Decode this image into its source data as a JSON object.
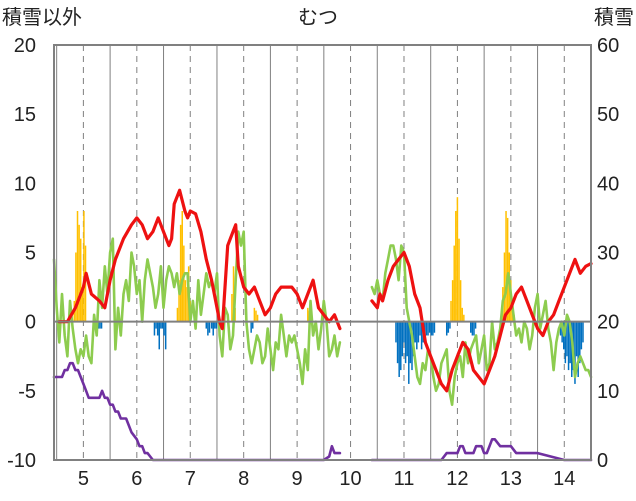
{
  "header": {
    "left_label": "積雪以外",
    "title": "むつ",
    "right_label": "積雪"
  },
  "chart_data": {
    "type": "line",
    "title": "むつ",
    "ylabel_left": "積雪以外",
    "ylabel_right": "積雪",
    "ylim_left": [
      -10,
      20
    ],
    "ylim_right": [
      0,
      60
    ],
    "yticks_left": [
      -10,
      -5,
      0,
      5,
      10,
      15,
      20
    ],
    "yticks_right": [
      0,
      10,
      20,
      30,
      40,
      50,
      60
    ],
    "xlim": [
      4.45,
      14.5
    ],
    "xticks": [
      "5",
      "6",
      "7",
      "8",
      "9",
      "10",
      "11",
      "12",
      "13",
      "14"
    ],
    "grid": {
      "solid_vertical_at": [
        4.5,
        5.5,
        6.5,
        7.5,
        8.5,
        9.5,
        10.5,
        11.5,
        12.5,
        13.5
      ],
      "dashed_vertical_at": [
        5,
        6,
        7,
        8,
        9,
        10,
        11,
        12,
        13,
        14
      ]
    },
    "colors": {
      "red": "#ee1111",
      "green": "#8dcc4f",
      "orange": "#ffc000",
      "blue": "#0070c0",
      "purple": "#7030a0",
      "axis": "#808080"
    },
    "series": [
      {
        "color": "#ee1111",
        "axis": "left",
        "segments": [
          {
            "x": [
              4.55,
              4.7,
              4.85,
              5.0,
              5.05,
              5.15,
              5.3,
              5.4,
              5.5,
              5.6,
              5.75,
              5.9,
              6.0,
              6.1,
              6.2,
              6.3,
              6.4,
              6.5,
              6.6,
              6.65,
              6.7,
              6.8,
              6.9,
              6.95,
              7.0,
              7.1,
              7.2,
              7.3,
              7.4,
              7.5,
              7.55,
              7.6,
              7.7,
              7.8,
              7.85,
              7.9,
              8.0,
              8.1,
              8.2,
              8.3,
              8.4,
              8.5,
              8.6,
              8.7,
              8.8,
              8.9,
              9.0,
              9.1,
              9.2,
              9.3,
              9.4,
              9.5,
              9.6,
              9.7,
              9.8
            ],
            "y": [
              0.0,
              0.0,
              1.0,
              2.5,
              3.5,
              2.0,
              1.5,
              1.0,
              3.0,
              4.5,
              6.0,
              7.0,
              7.5,
              7.0,
              6.0,
              6.5,
              7.5,
              6.5,
              5.5,
              6.0,
              8.5,
              9.5,
              8.0,
              7.5,
              8.0,
              7.8,
              6.5,
              4.5,
              3.0,
              1.0,
              0.0,
              -0.5,
              5.5,
              6.5,
              7.0,
              4.0,
              2.5,
              2.0,
              2.5,
              1.5,
              0.5,
              1.0,
              2.0,
              2.5,
              2.5,
              2.5,
              2.0,
              1.0,
              2.0,
              3.0,
              1.0,
              0.5,
              0.0,
              0.5,
              -0.5
            ]
          },
          {
            "x": [
              10.4,
              10.5,
              10.55,
              10.6,
              10.7,
              10.8,
              10.9,
              11.0,
              11.1,
              11.2,
              11.3,
              11.4,
              11.5,
              11.6,
              11.7,
              11.8,
              11.9,
              12.0,
              12.1,
              12.2,
              12.3,
              12.4,
              12.5,
              12.6,
              12.7,
              12.8,
              12.9,
              13.0,
              13.1,
              13.2,
              13.3,
              13.4,
              13.5,
              13.6,
              13.7,
              13.8,
              13.9,
              14.0,
              14.1,
              14.2,
              14.3,
              14.4,
              14.5
            ],
            "y": [
              1.5,
              1.0,
              2.0,
              1.5,
              3.0,
              4.0,
              4.5,
              5.0,
              4.0,
              2.0,
              1.0,
              -1.5,
              -2.5,
              -3.5,
              -4.5,
              -5.0,
              -3.5,
              -2.5,
              -1.5,
              -2.0,
              -3.5,
              -4.0,
              -4.5,
              -3.5,
              -2.5,
              -1.0,
              0.5,
              1.0,
              2.0,
              2.5,
              1.5,
              0.5,
              -0.5,
              -1.0,
              0.0,
              0.5,
              1.5,
              2.5,
              3.5,
              4.5,
              3.5,
              4.0,
              4.2
            ]
          }
        ]
      },
      {
        "color": "#8dcc4f",
        "axis": "left",
        "segments": [
          {
            "x": [
              4.45,
              4.5,
              4.55,
              4.6,
              4.65,
              4.7,
              4.75,
              4.8,
              4.85,
              4.9,
              4.95,
              5.0,
              5.05,
              5.1,
              5.15,
              5.2,
              5.25,
              5.3,
              5.35,
              5.4,
              5.45,
              5.5,
              5.55,
              5.6,
              5.65,
              5.7,
              5.75,
              5.8,
              5.85,
              5.9,
              5.95,
              6.0,
              6.05,
              6.1,
              6.15,
              6.2,
              6.25,
              6.3,
              6.35,
              6.4,
              6.45,
              6.5,
              6.55,
              6.6,
              6.65,
              6.7,
              6.75,
              6.8,
              6.85,
              6.9,
              6.95,
              7.0,
              7.05,
              7.1,
              7.15,
              7.2,
              7.25,
              7.3,
              7.35,
              7.4,
              7.45,
              7.5,
              7.55,
              7.6,
              7.65,
              7.7,
              7.75,
              7.8,
              7.85,
              7.9,
              7.95,
              8.0,
              8.05,
              8.1,
              8.15,
              8.2,
              8.25,
              8.3,
              8.35,
              8.4,
              8.45,
              8.5,
              8.55,
              8.6,
              8.65,
              8.7,
              8.75,
              8.8,
              8.85,
              8.9,
              8.95,
              9.0,
              9.05,
              9.1,
              9.15,
              9.2,
              9.25,
              9.3,
              9.35,
              9.4,
              9.45,
              9.5,
              9.55,
              9.6,
              9.65,
              9.7,
              9.75,
              9.8
            ],
            "y": [
              4.5,
              1.0,
              -1.5,
              2.0,
              -1.0,
              -2.5,
              1.5,
              -0.5,
              -2.0,
              -3.0,
              -2.0,
              -2.5,
              -1.0,
              -2.5,
              -3.0,
              0.5,
              -1.0,
              3.0,
              1.0,
              4.0,
              2.0,
              5.0,
              6.0,
              -2.0,
              1.0,
              -1.0,
              2.0,
              3.0,
              1.5,
              5.0,
              4.0,
              2.0,
              3.0,
              0.0,
              3.0,
              4.5,
              3.5,
              2.5,
              1.0,
              2.0,
              4.0,
              1.0,
              3.0,
              4.0,
              3.5,
              2.5,
              3.5,
              2.0,
              3.0,
              3.5,
              3.5,
              0.0,
              1.5,
              -0.5,
              3.0,
              0.5,
              2.0,
              3.5,
              2.5,
              3.0,
              2.0,
              3.5,
              -1.0,
              -2.5,
              1.0,
              0.5,
              -2.0,
              -1.0,
              3.0,
              6.5,
              5.5,
              6.5,
              0.0,
              -2.0,
              -3.0,
              -2.0,
              -1.0,
              -1.5,
              -3.0,
              -2.5,
              -0.5,
              -2.0,
              -3.5,
              -1.5,
              -2.0,
              0.5,
              -1.0,
              -2.5,
              -1.0,
              -1.5,
              -1.0,
              -2.0,
              -3.0,
              -4.5,
              -2.0,
              -3.5,
              1.5,
              -1.0,
              0.0,
              -2.0,
              -0.5,
              1.5,
              0.0,
              -2.5,
              -2.0,
              -1.0,
              -2.5,
              -1.5
            ]
          },
          {
            "x": [
              10.4,
              10.45,
              10.5,
              10.55,
              10.6,
              10.65,
              10.7,
              10.75,
              10.8,
              10.85,
              10.9,
              10.95,
              11.0,
              11.05,
              11.1,
              11.15,
              11.2,
              11.25,
              11.3,
              11.35,
              11.4,
              11.45,
              11.5,
              11.55,
              11.6,
              11.65,
              11.7,
              11.75,
              11.8,
              11.85,
              11.9,
              11.95,
              12.0,
              12.05,
              12.1,
              12.15,
              12.2,
              12.25,
              12.3,
              12.35,
              12.4,
              12.45,
              12.5,
              12.55,
              12.6,
              12.65,
              12.7,
              12.75,
              12.8,
              12.85,
              12.9,
              12.95,
              13.0,
              13.05,
              13.1,
              13.15,
              13.2,
              13.25,
              13.3,
              13.35,
              13.4,
              13.45,
              13.5,
              13.55,
              13.6,
              13.65,
              13.7,
              13.75,
              13.8,
              13.85,
              13.9,
              13.95,
              14.0,
              14.05,
              14.1,
              14.15,
              14.2,
              14.25,
              14.3,
              14.35,
              14.4,
              14.45,
              14.5
            ],
            "y": [
              2.5,
              2.0,
              3.0,
              2.0,
              1.5,
              3.5,
              4.5,
              5.5,
              5.5,
              4.5,
              3.0,
              5.5,
              5.0,
              1.0,
              0.0,
              -1.0,
              -2.5,
              -4.0,
              -4.5,
              -3.0,
              -3.5,
              -2.0,
              -2.5,
              -4.0,
              -5.0,
              -4.5,
              -3.0,
              -2.5,
              -2.0,
              -5.0,
              -6.0,
              -4.0,
              -3.0,
              -2.5,
              -4.0,
              -1.5,
              -3.0,
              -2.0,
              -1.5,
              -1.0,
              -3.0,
              -2.0,
              -1.0,
              -3.5,
              -3.0,
              0.0,
              -2.0,
              -1.5,
              -0.5,
              1.5,
              2.0,
              3.5,
              2.0,
              0.5,
              -1.0,
              -0.5,
              -1.5,
              0.0,
              -0.5,
              -2.0,
              -1.0,
              1.0,
              2.0,
              -0.5,
              0.5,
              1.5,
              -0.5,
              -1.5,
              -3.5,
              -1.5,
              -0.5,
              0.0,
              -1.0,
              0.5,
              0.0,
              -1.5,
              -4.0,
              -3.0,
              -2.5,
              -3.0,
              -3.5,
              -3.5,
              -4.0
            ]
          }
        ]
      },
      {
        "color": "#7030a0",
        "axis": "right",
        "segments": [
          {
            "x": [
              4.45,
              4.6,
              4.65,
              4.7,
              4.75,
              4.8,
              4.85,
              4.9,
              4.95,
              5.0,
              5.05,
              5.1,
              5.2,
              5.3,
              5.35,
              5.4,
              5.45,
              5.5,
              5.55,
              5.6,
              5.65,
              5.7,
              5.8,
              5.85,
              5.9,
              6.0,
              6.05,
              6.1,
              6.15,
              6.2,
              6.25,
              6.3,
              6.4,
              6.45,
              6.5,
              6.6,
              7.0,
              7.5,
              8.0,
              8.5,
              9.0,
              9.5,
              9.6,
              9.65,
              9.7,
              9.75,
              9.8
            ],
            "y": [
              12,
              12,
              13,
              13,
              14,
              14,
              13,
              13,
              12,
              11,
              10,
              9,
              9,
              9,
              10,
              9,
              9,
              8,
              8,
              7,
              7,
              6,
              6,
              5,
              4,
              3,
              2,
              2,
              1,
              1,
              0.5,
              0,
              0,
              0,
              0,
              0,
              0,
              0,
              0,
              0,
              0,
              0,
              0.5,
              2,
              1,
              1,
              1
            ]
          },
          {
            "x": [
              10.4,
              10.8,
              11.2,
              11.5,
              11.6,
              11.7,
              11.8,
              11.9,
              12.0,
              12.05,
              12.1,
              12.15,
              12.2,
              12.3,
              12.35,
              12.4,
              12.45,
              12.5,
              12.55,
              12.6,
              12.65,
              12.7,
              12.8,
              12.9,
              13.0,
              13.1,
              13.5,
              14.0,
              14.5
            ],
            "y": [
              0,
              0,
              0,
              0,
              0,
              0,
              1,
              1,
              1,
              2,
              2,
              1,
              1,
              1,
              2,
              2,
              2,
              1,
              1,
              2,
              3,
              3,
              2,
              2,
              2,
              1,
              1,
              0,
              0
            ]
          }
        ]
      }
    ],
    "bars": [
      {
        "color": "#ffc000",
        "axis": "left",
        "x": [
          4.83,
          4.86,
          4.89,
          4.92,
          4.95,
          4.98,
          5.01,
          5.04,
          6.76,
          6.79,
          6.82,
          6.85,
          6.88,
          6.91,
          6.94,
          6.97,
          7.0,
          7.78,
          7.81,
          7.84,
          8.2,
          8.23,
          8.26,
          9.2,
          9.23,
          9.26,
          11.88,
          11.91,
          11.94,
          11.97,
          12.0,
          12.03,
          12.06,
          12.09,
          12.12,
          12.85,
          12.88,
          12.91,
          12.94,
          12.97,
          13.0,
          13.03,
          13.06
        ],
        "y": [
          1.5,
          5.0,
          8.0,
          7.0,
          6.0,
          2.5,
          8.0,
          5.5,
          1.0,
          3.0,
          7.0,
          8.0,
          5.5,
          3.0,
          2.5,
          4.0,
          1.5,
          2.0,
          4.0,
          1.0,
          1.0,
          0.8,
          0.5,
          1.0,
          0.8,
          0.5,
          1.5,
          3.0,
          5.5,
          8.0,
          9.0,
          6.0,
          3.0,
          1.0,
          0.5,
          2.5,
          5.0,
          8.0,
          7.5,
          5.0,
          3.0,
          1.5,
          0.5
        ]
      },
      {
        "color": "#0070c0",
        "axis": "left",
        "x": [
          5.28,
          5.31,
          5.34,
          6.33,
          6.36,
          6.39,
          6.42,
          6.45,
          6.48,
          6.51,
          6.54,
          7.3,
          7.33,
          7.36,
          7.4,
          7.43,
          7.46,
          7.49,
          8.14,
          8.17,
          10.85,
          10.88,
          10.91,
          10.94,
          10.97,
          11.0,
          11.03,
          11.06,
          11.09,
          11.12,
          11.15,
          11.18,
          11.21,
          11.24,
          11.27,
          11.3,
          11.33,
          11.36,
          11.39,
          11.42,
          11.45,
          11.48,
          11.51,
          11.54,
          11.57,
          11.8,
          11.83,
          11.86,
          12.25,
          12.28,
          12.31,
          12.34,
          13.93,
          13.96,
          13.99,
          14.02,
          14.05,
          14.08,
          14.11,
          14.14,
          14.17,
          14.2,
          14.23,
          14.26,
          14.29,
          14.32,
          14.35
        ],
        "y": [
          -0.5,
          -0.5,
          -0.5,
          -1.0,
          -0.5,
          -1.0,
          -2.0,
          -0.5,
          -0.5,
          -1.0,
          -2.0,
          -0.5,
          -1.0,
          -0.8,
          -0.5,
          -1.0,
          -0.5,
          -0.5,
          -0.8,
          -0.5,
          -1.5,
          -3.0,
          -4.0,
          -3.5,
          -2.5,
          -1.5,
          -3.0,
          -2.5,
          -4.5,
          -3.0,
          -3.5,
          -2.5,
          -1.5,
          -2.0,
          -1.5,
          -1.0,
          -2.0,
          -1.5,
          -1.5,
          -1.0,
          -1.0,
          -0.8,
          -1.0,
          -1.0,
          -0.8,
          -1.0,
          -0.8,
          -0.5,
          -0.8,
          -1.0,
          -1.0,
          -0.5,
          -1.0,
          -1.5,
          -2.0,
          -3.0,
          -2.5,
          -3.5,
          -3.0,
          -4.0,
          -3.5,
          -4.5,
          -2.5,
          -4.0,
          -3.0,
          -2.0,
          -1.5
        ]
      }
    ]
  }
}
